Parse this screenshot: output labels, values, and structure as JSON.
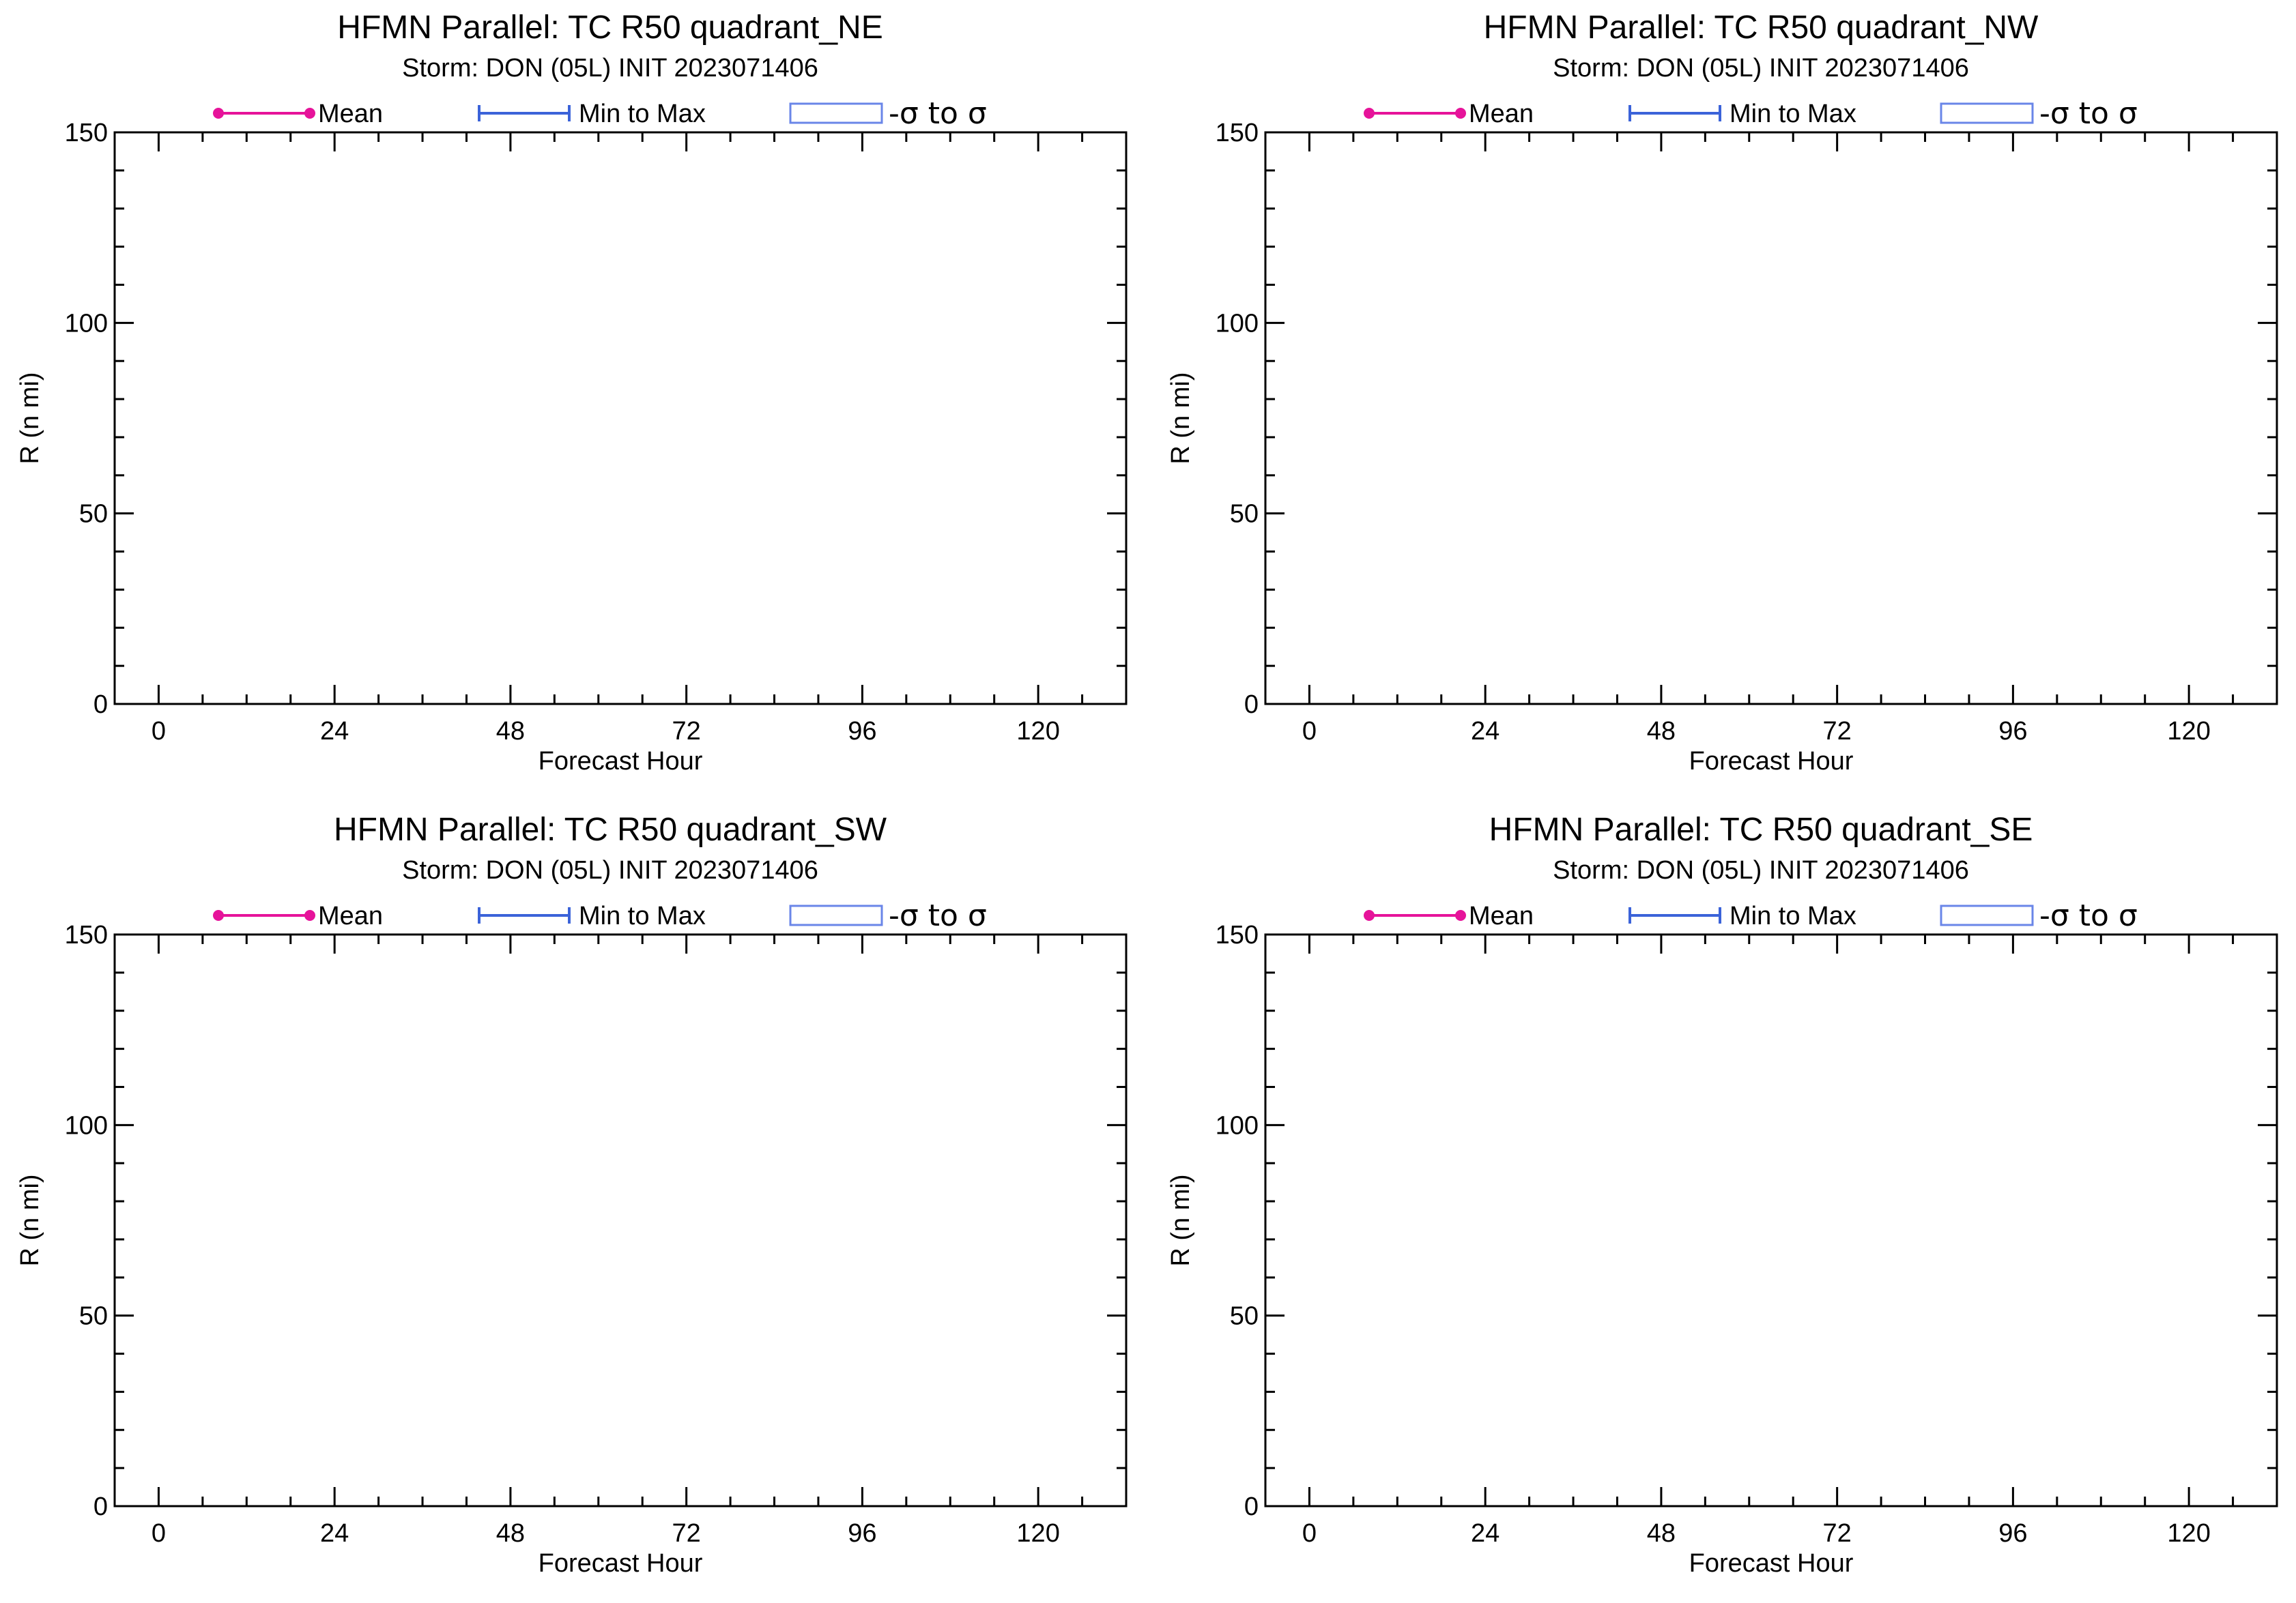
{
  "chart_data": [
    {
      "type": "line",
      "title": "HFMN Parallel: TC  R50 quadrant_NE",
      "subtitle": "Storm: DON (05L) INIT 2023071406",
      "xlabel": "Forecast Hour",
      "ylabel": "R (n mi)",
      "xlim": [
        -6,
        132
      ],
      "ylim": [
        0,
        150
      ],
      "x_ticks": [
        0,
        24,
        48,
        72,
        96,
        120
      ],
      "y_ticks": [
        0,
        50,
        100,
        150
      ],
      "x_minor_step": 6,
      "y_minor_step": 10,
      "grid": false,
      "legend_position": "top",
      "series": []
    },
    {
      "type": "line",
      "title": "HFMN Parallel: TC  R50 quadrant_NW",
      "subtitle": "Storm: DON (05L) INIT 2023071406",
      "xlabel": "Forecast Hour",
      "ylabel": "R (n mi)",
      "xlim": [
        -6,
        132
      ],
      "ylim": [
        0,
        150
      ],
      "x_ticks": [
        0,
        24,
        48,
        72,
        96,
        120
      ],
      "y_ticks": [
        0,
        50,
        100,
        150
      ],
      "x_minor_step": 6,
      "y_minor_step": 10,
      "grid": false,
      "legend_position": "top",
      "series": []
    },
    {
      "type": "line",
      "title": "HFMN Parallel: TC  R50 quadrant_SW",
      "subtitle": "Storm: DON (05L) INIT 2023071406",
      "xlabel": "Forecast Hour",
      "ylabel": "R (n mi)",
      "xlim": [
        -6,
        132
      ],
      "ylim": [
        0,
        150
      ],
      "x_ticks": [
        0,
        24,
        48,
        72,
        96,
        120
      ],
      "y_ticks": [
        0,
        50,
        100,
        150
      ],
      "x_minor_step": 6,
      "y_minor_step": 10,
      "grid": false,
      "legend_position": "top",
      "series": []
    },
    {
      "type": "line",
      "title": "HFMN Parallel: TC  R50 quadrant_SE",
      "subtitle": "Storm: DON (05L) INIT 2023071406",
      "xlabel": "Forecast Hour",
      "ylabel": "R (n mi)",
      "xlim": [
        -6,
        132
      ],
      "ylim": [
        0,
        150
      ],
      "x_ticks": [
        0,
        24,
        48,
        72,
        96,
        120
      ],
      "y_ticks": [
        0,
        50,
        100,
        150
      ],
      "x_minor_step": 6,
      "y_minor_step": 10,
      "grid": false,
      "legend_position": "top",
      "series": []
    }
  ],
  "legend": {
    "mean_label": "Mean",
    "minmax_label": "Min to Max",
    "sigma_label": "-σ to σ"
  },
  "colors": {
    "mean": "#e6139a",
    "minmax": "#3b63d9",
    "sigma_box": "#6a86e8"
  }
}
